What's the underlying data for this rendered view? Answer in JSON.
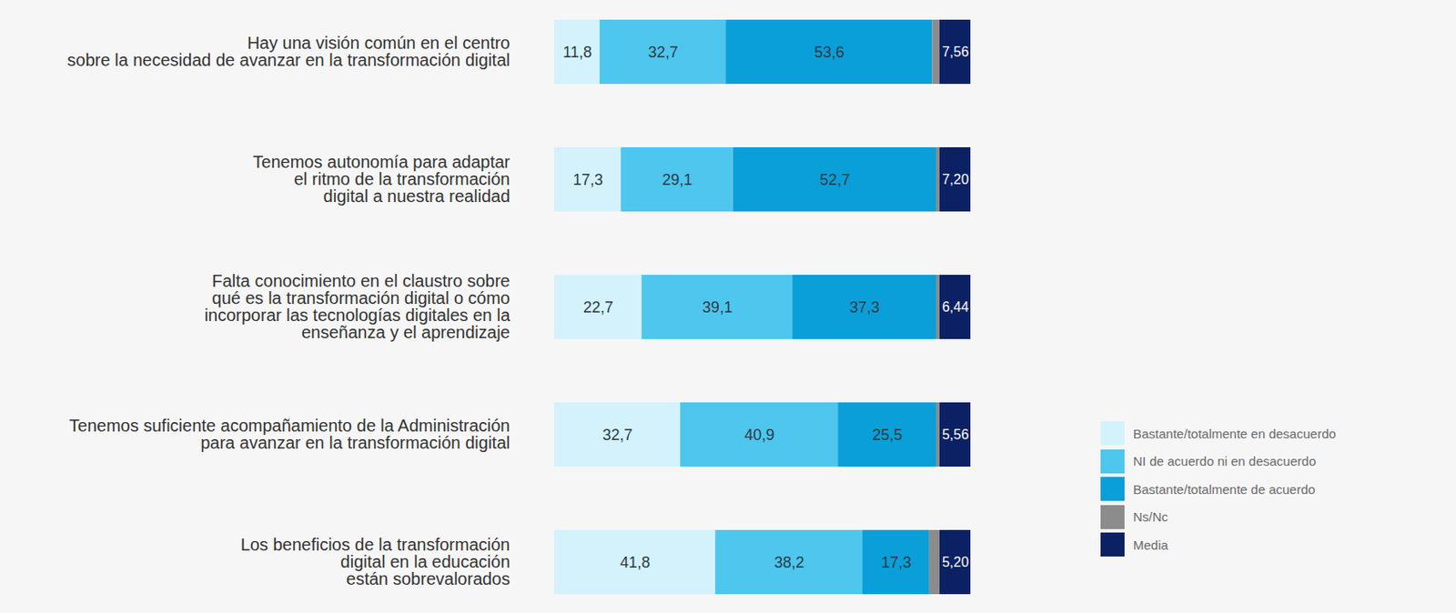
{
  "chart_data": {
    "type": "bar",
    "orientation": "horizontal",
    "stacked": true,
    "data_labels": true,
    "tick_labels": "y",
    "legend": "right",
    "xlim": [
      0,
      100
    ],
    "categories": [
      "Hay una visión común en el centro\nsobre la necesidad de avanzar en la transformación digital",
      "Tenemos autonomía para adaptar\nel ritmo de la transformación\ndigital a nuestra realidad",
      "Falta conocimiento en el claustro sobre\nqué es la transformación digital o cómo\nincorporar las tecnologías digitales en la\nenseñanza y el aprendizaje",
      "Tenemos suficiente acompañamiento de la Administración\npara avanzar en la transformación digital",
      "Los beneficios de la transformación\ndigital en la educación\nestán sobrevalorados"
    ],
    "series": [
      {
        "name": "Bastante/totalmente en desacuerdo",
        "color": "#d3f2fb",
        "type": "bar",
        "values": [
          11.8,
          17.3,
          22.7,
          32.7,
          41.8
        ],
        "value_labels": [
          "11,8",
          "17,3",
          "22,7",
          "32,7",
          "41,8"
        ]
      },
      {
        "name": "NI de acuerdo ni en desacuerdo",
        "color": "#4ec6ee",
        "type": "bar",
        "values": [
          32.7,
          29.1,
          39.1,
          40.9,
          38.2
        ],
        "value_labels": [
          "32,7",
          "29,1",
          "39,1",
          "40,9",
          "38,2"
        ]
      },
      {
        "name": "Bastante/totalmente de acuerdo",
        "color": "#0a9fd8",
        "type": "bar",
        "values": [
          53.6,
          52.7,
          37.3,
          25.5,
          17.3
        ],
        "value_labels": [
          "53,6",
          "52,7",
          "37,3",
          "25,5",
          "17,3"
        ]
      },
      {
        "name": "Ns/Nc",
        "color": "#8c8c8c",
        "type": "bar",
        "values": [
          1.9,
          0.9,
          0.9,
          0.9,
          2.7
        ],
        "value_labels": [
          null,
          null,
          null,
          null,
          null
        ]
      },
      {
        "name": "Media",
        "color": "#0b2163",
        "type": "box",
        "values": [
          7.56,
          7.2,
          6.44,
          5.56,
          5.2
        ],
        "value_labels": [
          "7,56",
          "7,20",
          "6,44",
          "5,56",
          "5,20"
        ]
      }
    ]
  }
}
